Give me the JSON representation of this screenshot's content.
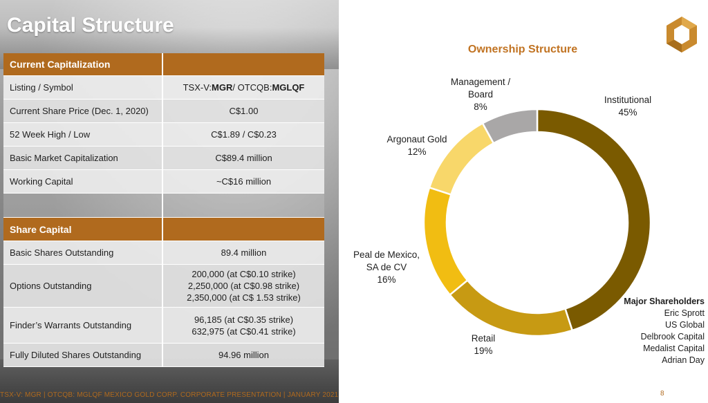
{
  "page": {
    "title": "Capital Structure",
    "footer": "TSX-V: MGR | OTCQB: MGLQF   MEXICO GOLD CORP. CORPORATE PRESENTATION | JANUARY 2021",
    "page_number": "8"
  },
  "current_cap": {
    "header": "Current Capitalization",
    "rows": [
      {
        "label": "Listing / Symbol",
        "value": ""
      },
      {
        "label": "Current Share Price (Dec. 1, 2020)",
        "value": "C$1.00"
      },
      {
        "label": "52 Week High / Low",
        "value": "C$1.89 / C$0.23"
      },
      {
        "label": "Basic Market Capitalization",
        "value": "C$89.4 million"
      },
      {
        "label": "Working Capital",
        "value": "~C$16 million"
      }
    ],
    "listing": {
      "tsx_prefix": "TSX-V: ",
      "tsx_symbol": "MGR",
      "sep": " / OTCQB: ",
      "otc_symbol": "MGLQF"
    }
  },
  "share_cap": {
    "header": "Share Capital",
    "rows": [
      {
        "label": "Basic Shares Outstanding",
        "lines": [
          "89.4 million"
        ]
      },
      {
        "label": "Options Outstanding",
        "lines": [
          "200,000 (at C$0.10 strike)",
          "2,250,000 (at C$0.98 strike)",
          "2,350,000 (at C$ 1.53 strike)"
        ]
      },
      {
        "label": "Finder’s Warrants Outstanding",
        "lines": [
          "96,185 (at C$0.35 strike)",
          "632,975 (at C$0.41 strike)"
        ]
      },
      {
        "label": "Fully Diluted Shares Outstanding",
        "lines": [
          "94.96 million"
        ]
      }
    ]
  },
  "chart_data": {
    "type": "pie",
    "title": "Ownership Structure",
    "donut": true,
    "slices": [
      {
        "name": "Institutional",
        "value": 45,
        "label": "45%",
        "color": "#7a5a00"
      },
      {
        "name": "Retail",
        "value": 19,
        "label": "19%",
        "color": "#c79a13"
      },
      {
        "name": "Peal de Mexico, SA de CV",
        "value": 16,
        "label": "16%",
        "color": "#f1bd12"
      },
      {
        "name": "Argonaut Gold",
        "value": 12,
        "label": "12%",
        "color": "#f8d76a"
      },
      {
        "name": "Management / Board",
        "value": 8,
        "label": "8%",
        "color": "#a9a7a7"
      }
    ],
    "label_lines": {
      "institutional": [
        "Institutional",
        "45%"
      ],
      "retail": [
        "Retail",
        "19%"
      ],
      "peal": [
        "Peal de Mexico,",
        "SA de CV",
        "16%"
      ],
      "argonaut": [
        "Argonaut Gold",
        "12%"
      ],
      "management": [
        "Management /",
        "Board",
        "8%"
      ]
    }
  },
  "major_shareholders": {
    "title": "Major Shareholders",
    "names": [
      "Eric Sprott",
      "US Global",
      "Delbrook Capital",
      "Medalist Capital",
      "Adrian Day"
    ]
  },
  "colors": {
    "accent": "#b06a1e",
    "title_orange": "#c17322"
  }
}
